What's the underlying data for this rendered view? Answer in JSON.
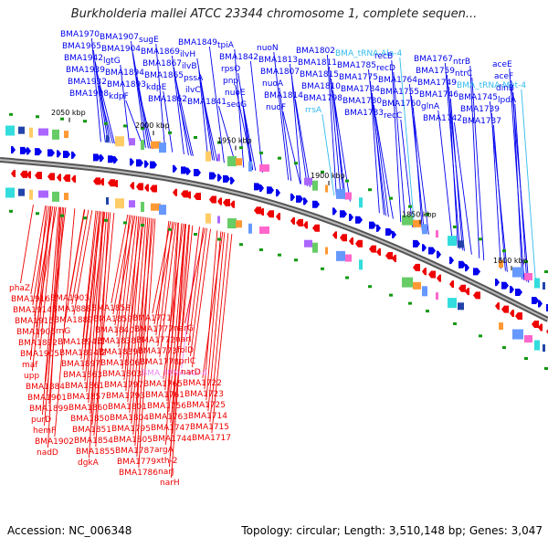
{
  "title": "Burkholderia mallei ATCC 23344 chromosome 1, complete sequen...",
  "footer": {
    "accession": "Accession: NC_006348",
    "summary": "Topology: circular; Length: 3,510,148 bp; Genes: 3,047"
  },
  "colors": {
    "forward": "#0000ee",
    "reverse": "#ee0000",
    "rna": "#33bbee",
    "rna_reverse": "#ee88ee",
    "backbone": "#888888",
    "gc_tick": "#119911"
  },
  "scale_labels": [
    {
      "text": "2050 kbp"
    },
    {
      "text": "2000 kbp"
    },
    {
      "text": "1950 kbp"
    },
    {
      "text": "1900 kbp"
    },
    {
      "text": "1850 kbp"
    },
    {
      "text": "1800 kbp"
    }
  ],
  "top_labels": [
    {
      "text": "BMA1970",
      "rna": false
    },
    {
      "text": "BMA1965",
      "rna": false
    },
    {
      "text": "BMA1942",
      "rna": false
    },
    {
      "text": "BMA1939",
      "rna": false
    },
    {
      "text": "BMA1932",
      "rna": false
    },
    {
      "text": "BMA1908",
      "rna": false
    },
    {
      "text": "BMA1907",
      "rna": false
    },
    {
      "text": "BMA1904",
      "rna": false
    },
    {
      "text": "lgtG",
      "rna": false
    },
    {
      "text": "BMA1894",
      "rna": false
    },
    {
      "text": "BMA1893",
      "rna": false
    },
    {
      "text": "kdpF",
      "rna": false
    },
    {
      "text": "sugE",
      "rna": false
    },
    {
      "text": "BMA1869",
      "rna": false
    },
    {
      "text": "BMA1867",
      "rna": false
    },
    {
      "text": "BMA1865",
      "rna": false
    },
    {
      "text": "kdpE",
      "rna": false
    },
    {
      "text": "BMA1862",
      "rna": false
    },
    {
      "text": "BMA1849",
      "rna": false
    },
    {
      "text": "ilvH",
      "rna": false
    },
    {
      "text": "ilvB",
      "rna": false
    },
    {
      "text": "pssA",
      "rna": false
    },
    {
      "text": "ilvC",
      "rna": false
    },
    {
      "text": "BMA1841",
      "rna": false
    },
    {
      "text": "tpiA",
      "rna": false
    },
    {
      "text": "BMA1842",
      "rna": false
    },
    {
      "text": "rpsO",
      "rna": false
    },
    {
      "text": "pnp",
      "rna": false
    },
    {
      "text": "nuoE",
      "rna": false
    },
    {
      "text": "secG",
      "rna": false
    },
    {
      "text": "nuoN",
      "rna": false
    },
    {
      "text": "BMA1813",
      "rna": false
    },
    {
      "text": "BMA1807",
      "rna": false
    },
    {
      "text": "nuoA",
      "rna": false
    },
    {
      "text": "BMA1814",
      "rna": false
    },
    {
      "text": "nuoF",
      "rna": false
    },
    {
      "text": "BMA1802",
      "rna": false
    },
    {
      "text": "BMA1811",
      "rna": false
    },
    {
      "text": "BMA1815",
      "rna": false
    },
    {
      "text": "BMA1810",
      "rna": false
    },
    {
      "text": "BMA1798",
      "rna": false
    },
    {
      "text": "rrsA",
      "rna": true
    },
    {
      "text": "BMA_tRNA-Ala-4",
      "rna": true
    },
    {
      "text": "BMA1785",
      "rna": false
    },
    {
      "text": "BMA1775",
      "rna": false
    },
    {
      "text": "BMA1784",
      "rna": false
    },
    {
      "text": "BMA1780",
      "rna": false
    },
    {
      "text": "BMA1783",
      "rna": false
    },
    {
      "text": "recB",
      "rna": false
    },
    {
      "text": "recD",
      "rna": false
    },
    {
      "text": "BMA1764",
      "rna": false
    },
    {
      "text": "BMA1755",
      "rna": false
    },
    {
      "text": "BMA1760",
      "rna": false
    },
    {
      "text": "recC",
      "rna": false
    },
    {
      "text": "BMA1767",
      "rna": false
    },
    {
      "text": "BMA1759",
      "rna": false
    },
    {
      "text": "BMA1749",
      "rna": false
    },
    {
      "text": "BMA1746",
      "rna": false
    },
    {
      "text": "glnA",
      "rna": false
    },
    {
      "text": "BMA1742",
      "rna": false
    },
    {
      "text": "ntrB",
      "rna": false
    },
    {
      "text": "ntrC",
      "rna": false
    },
    {
      "text": "BMA_tRNA-Met-4",
      "rna": true
    },
    {
      "text": "BMA1745",
      "rna": false
    },
    {
      "text": "BMA1739",
      "rna": false
    },
    {
      "text": "BMA1737",
      "rna": false
    },
    {
      "text": "aceE",
      "rna": false
    },
    {
      "text": "aceF",
      "rna": false
    },
    {
      "text": "dinB",
      "rna": false
    },
    {
      "text": "lpdA",
      "rna": false
    }
  ],
  "bottom_labels": [
    {
      "text": "phaZ",
      "rna": false
    },
    {
      "text": "BMA1916",
      "rna": false
    },
    {
      "text": "BMA1914",
      "rna": false
    },
    {
      "text": "BMA1915",
      "rna": false
    },
    {
      "text": "BMA1906",
      "rna": false
    },
    {
      "text": "BMA1892",
      "rna": false
    },
    {
      "text": "BMA1905",
      "rna": false
    },
    {
      "text": "maf",
      "rna": false
    },
    {
      "text": "upp",
      "rna": false
    },
    {
      "text": "BMA1884",
      "rna": false
    },
    {
      "text": "BMA1901",
      "rna": false
    },
    {
      "text": "BMA1899",
      "rna": false
    },
    {
      "text": "purD",
      "rna": false
    },
    {
      "text": "hemF",
      "rna": false
    },
    {
      "text": "BMA1902",
      "rna": false
    },
    {
      "text": "nadD",
      "rna": false
    },
    {
      "text": "BMA1903",
      "rna": false
    },
    {
      "text": "BMA1888",
      "rna": false
    },
    {
      "text": "BMA1889",
      "rna": false
    },
    {
      "text": "rnG",
      "rna": false
    },
    {
      "text": "BMA1894.1",
      "rna": false
    },
    {
      "text": "BMA1894.2",
      "rna": false
    },
    {
      "text": "BMA1897",
      "rna": false
    },
    {
      "text": "BMA1863",
      "rna": false
    },
    {
      "text": "BMA1861",
      "rna": false
    },
    {
      "text": "BMA1857",
      "rna": false
    },
    {
      "text": "BMA1860",
      "rna": false
    },
    {
      "text": "BMA1850",
      "rna": false
    },
    {
      "text": "BMA1851",
      "rna": false
    },
    {
      "text": "BMA1854",
      "rna": false
    },
    {
      "text": "BMA1855",
      "rna": false
    },
    {
      "text": "dgkA",
      "rna": false
    },
    {
      "text": "BMA1858",
      "rna": false
    },
    {
      "text": "BMA1859",
      "rna": false
    },
    {
      "text": "BMA1840",
      "rna": false
    },
    {
      "text": "BMA1838",
      "rna": false
    },
    {
      "text": "BMA1839",
      "rna": false
    },
    {
      "text": "BMA1806",
      "rna": false
    },
    {
      "text": "BMA1803",
      "rna": false
    },
    {
      "text": "BMA1797",
      "rna": false
    },
    {
      "text": "BMA1793",
      "rna": false
    },
    {
      "text": "BMA1801",
      "rna": false
    },
    {
      "text": "BMA1804",
      "rna": false
    },
    {
      "text": "BMA1795",
      "rna": false
    },
    {
      "text": "BMA1805",
      "rna": false
    },
    {
      "text": "BMA1787",
      "rna": false
    },
    {
      "text": "BMA1779",
      "rna": false
    },
    {
      "text": "BMA1786",
      "rna": false
    },
    {
      "text": "BMA1771",
      "rna": false
    },
    {
      "text": "BMA1777",
      "rna": false
    },
    {
      "text": "BMA1772",
      "rna": false
    },
    {
      "text": "BMA1773",
      "rna": false
    },
    {
      "text": "BMA1778",
      "rna": false
    },
    {
      "text": "BMA_tRNA-Val-4",
      "rna": true
    },
    {
      "text": "BMA1765",
      "rna": false
    },
    {
      "text": "BMA1761",
      "rna": false
    },
    {
      "text": "BMA1756",
      "rna": false
    },
    {
      "text": "BMA1763",
      "rna": false
    },
    {
      "text": "BMA1747",
      "rna": false
    },
    {
      "text": "BMA1744",
      "rna": false
    },
    {
      "text": "argA",
      "rna": false
    },
    {
      "text": "xth-2",
      "rna": false
    },
    {
      "text": "narJ",
      "rna": false
    },
    {
      "text": "narH",
      "rna": false
    },
    {
      "text": "narG",
      "rna": false
    },
    {
      "text": "narI",
      "rna": false
    },
    {
      "text": "folD",
      "rna": false
    },
    {
      "text": "prlC",
      "rna": false
    },
    {
      "text": "narD",
      "rna": false
    },
    {
      "text": "BMA1722",
      "rna": false
    },
    {
      "text": "BMA1723",
      "rna": false
    },
    {
      "text": "BMA1725",
      "rna": false
    },
    {
      "text": "BMA1714",
      "rna": false
    },
    {
      "text": "BMA1715",
      "rna": false
    },
    {
      "text": "BMA1717",
      "rna": false
    }
  ]
}
